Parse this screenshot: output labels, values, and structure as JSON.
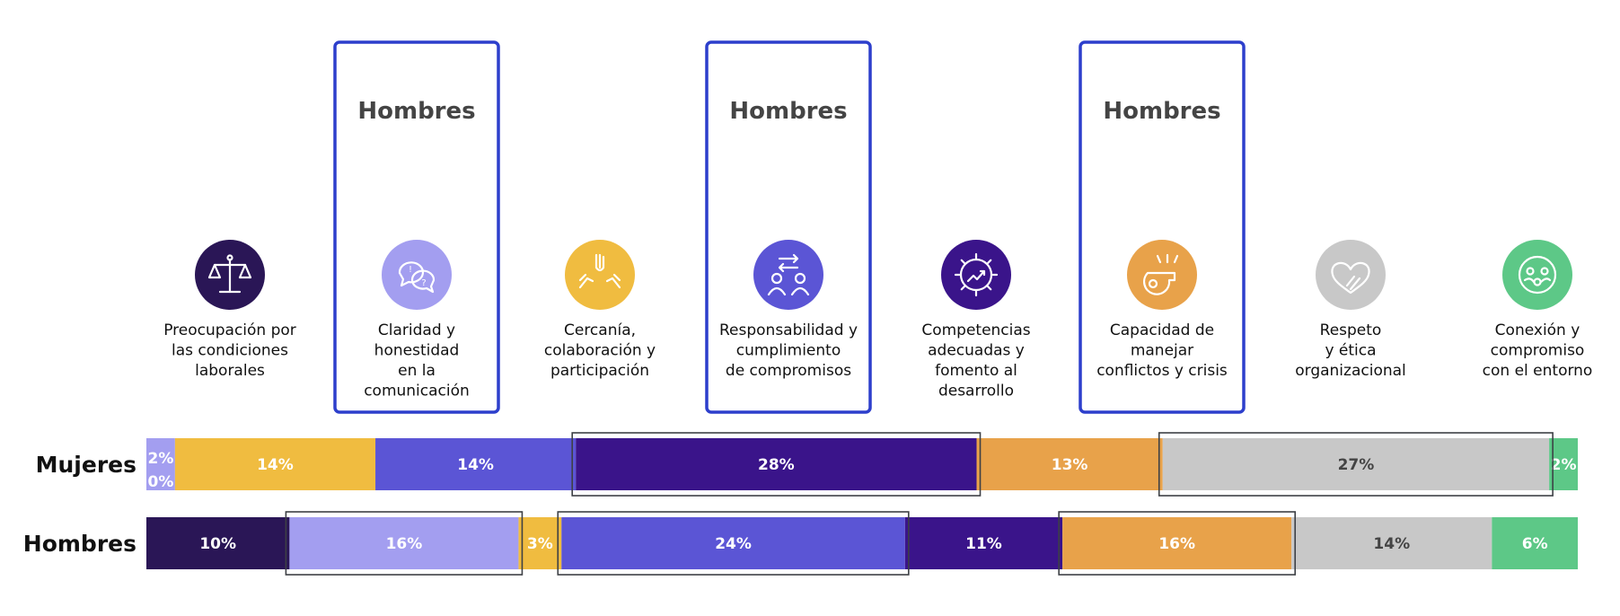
{
  "chart_data": {
    "type": "bar",
    "stacked": true,
    "orientation": "horizontal",
    "normalized_percent": true,
    "categories": [
      {
        "label": [
          "Preocupación por",
          "las condiciones",
          "laborales"
        ],
        "color": "#2A1656",
        "icon": "scales-icon"
      },
      {
        "label": [
          "Claridad y",
          "honestidad",
          "en la",
          "comunicación"
        ],
        "color": "#A39EF0",
        "icon": "speech-bubbles-icon"
      },
      {
        "label": [
          "Cercanía,",
          "colaboración y",
          "participación"
        ],
        "color": "#F0BC40",
        "icon": "helping-hands-icon"
      },
      {
        "label": [
          "Responsabilidad y",
          "cumplimiento",
          "de compromisos"
        ],
        "color": "#5B55D5",
        "icon": "people-exchange-icon"
      },
      {
        "label": [
          "Competencias",
          "adecuadas y",
          "fomento al",
          "desarrollo"
        ],
        "color": "#3A148A",
        "icon": "gear-growth-icon"
      },
      {
        "label": [
          "Capacidad de",
          "manejar",
          "conflictos y crisis"
        ],
        "color": "#E8A24A",
        "icon": "whistle-icon"
      },
      {
        "label": [
          "Respeto",
          "y ética",
          "organizacional"
        ],
        "color": "#C8C8C8",
        "icon": "heart-hand-icon"
      },
      {
        "label": [
          "Conexión y",
          "compromiso",
          "con el entorno"
        ],
        "color": "#5DC887",
        "icon": "globe-people-icon"
      }
    ],
    "series": [
      {
        "name": "Mujeres",
        "values": [
          0,
          2,
          14,
          14,
          28,
          13,
          27,
          2
        ],
        "labels": [
          "0%",
          "2%",
          "14%",
          "14%",
          "28%",
          "13%",
          "27%",
          "2%"
        ],
        "highlighted_categories": [
          4,
          6
        ]
      },
      {
        "name": "Hombres",
        "values": [
          10,
          16,
          3,
          24,
          11,
          16,
          14,
          6
        ],
        "labels": [
          "10%",
          "16%",
          "3%",
          "24%",
          "11%",
          "16%",
          "14%",
          "6%"
        ],
        "highlighted_categories": [
          1,
          3,
          5
        ]
      }
    ],
    "category_callouts": [
      {
        "category": 1,
        "text": "Hombres"
      },
      {
        "category": 3,
        "text": "Hombres"
      },
      {
        "category": 5,
        "text": "Hombres"
      }
    ],
    "xlim": [
      0,
      100
    ],
    "legend": "none",
    "grid": false
  }
}
